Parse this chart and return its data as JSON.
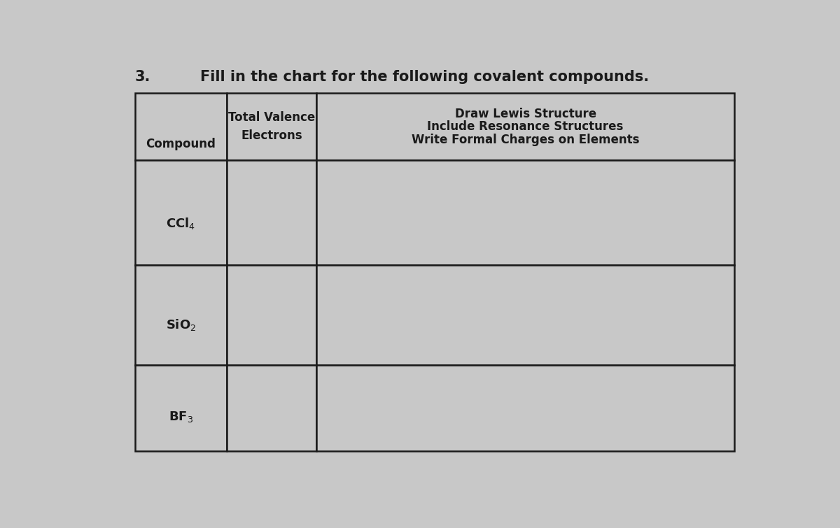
{
  "title_number": "3.",
  "title_text": "Fill in the chart for the following covalent compounds.",
  "background_color": "#c8c8c8",
  "cell_color": "#c8c8c8",
  "border_color": "#1a1a1a",
  "text_color": "#1a1a1a",
  "header_col1_line1": "Compound",
  "header_col2_line1": "Total Valence",
  "header_col2_line2": "Electrons",
  "header_col3_line1": "Draw Lewis Structure",
  "header_col3_line2": "Include Resonance Structures",
  "header_col3_line3": "Write Formal Charges on Elements",
  "compounds": [
    "CCl$_4$",
    "SiO$_2$",
    "BF$_3$"
  ],
  "title_fontsize": 15,
  "header_fontsize": 12,
  "compound_fontsize": 13
}
